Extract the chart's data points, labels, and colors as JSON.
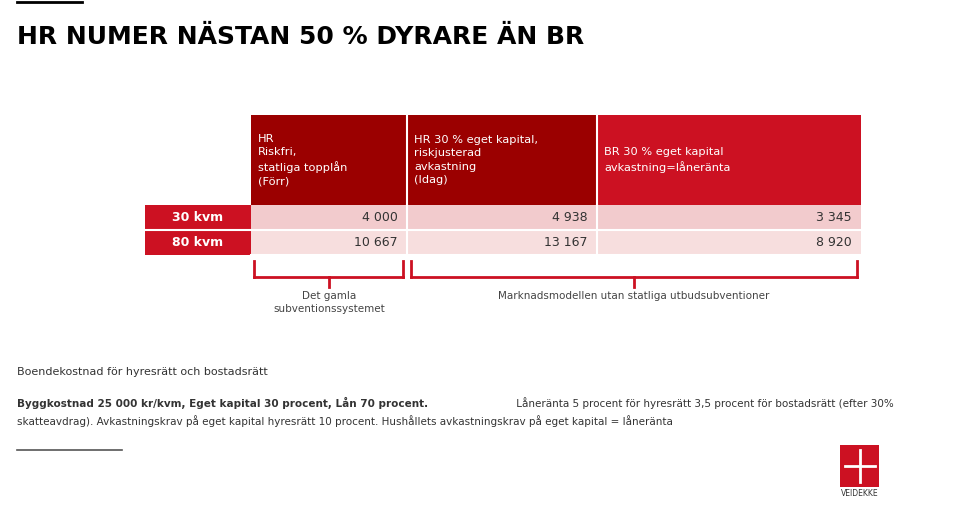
{
  "title": "HR NUMER NÄSTAN 50 % DYRARE ÄN BR",
  "bg_color": "#ffffff",
  "red_color": "#CC1122",
  "dark_red_color": "#9B0000",
  "light_red_color1": "#F2CBCD",
  "light_red_color2": "#F7DEDE",
  "col_headers": [
    "HR\nRiskfri,\nstatliga topplån\n(Förr)",
    "HR 30 % eget kapital,\nriskjusterad\navkastning\n(Idag)",
    "BR 30 % eget kapital\navkastning=låneränta"
  ],
  "row_labels": [
    "30 kvm",
    "80 kvm"
  ],
  "data": [
    [
      "4 000",
      "4 938",
      "3 345"
    ],
    [
      "10 667",
      "13 167",
      "8 920"
    ]
  ],
  "brace_label1": "Det gamla\nsubventionssystemet",
  "brace_label2": "Marknadsmodellen utan statliga utbudsubventioner",
  "footer_line1": "Boendekostnad för hyresrätt och bostadsrätt",
  "footer_bold": "Byggkostnad 25 000 kr/kvm, Eget kapital 30 procent, Lån 70 procent.",
  "footer_normal": " Låneränta 5 procent för hyresrätt 3,5 procent för bostadsrätt (efter 30%",
  "footer_line3": "skatteavdrag). Avkastningskrav på eget kapital hyresrätt 10 procent. Hushållets avkastningskrav på eget kapital = låneränta",
  "veidekke_text": "VEIDEKKE"
}
